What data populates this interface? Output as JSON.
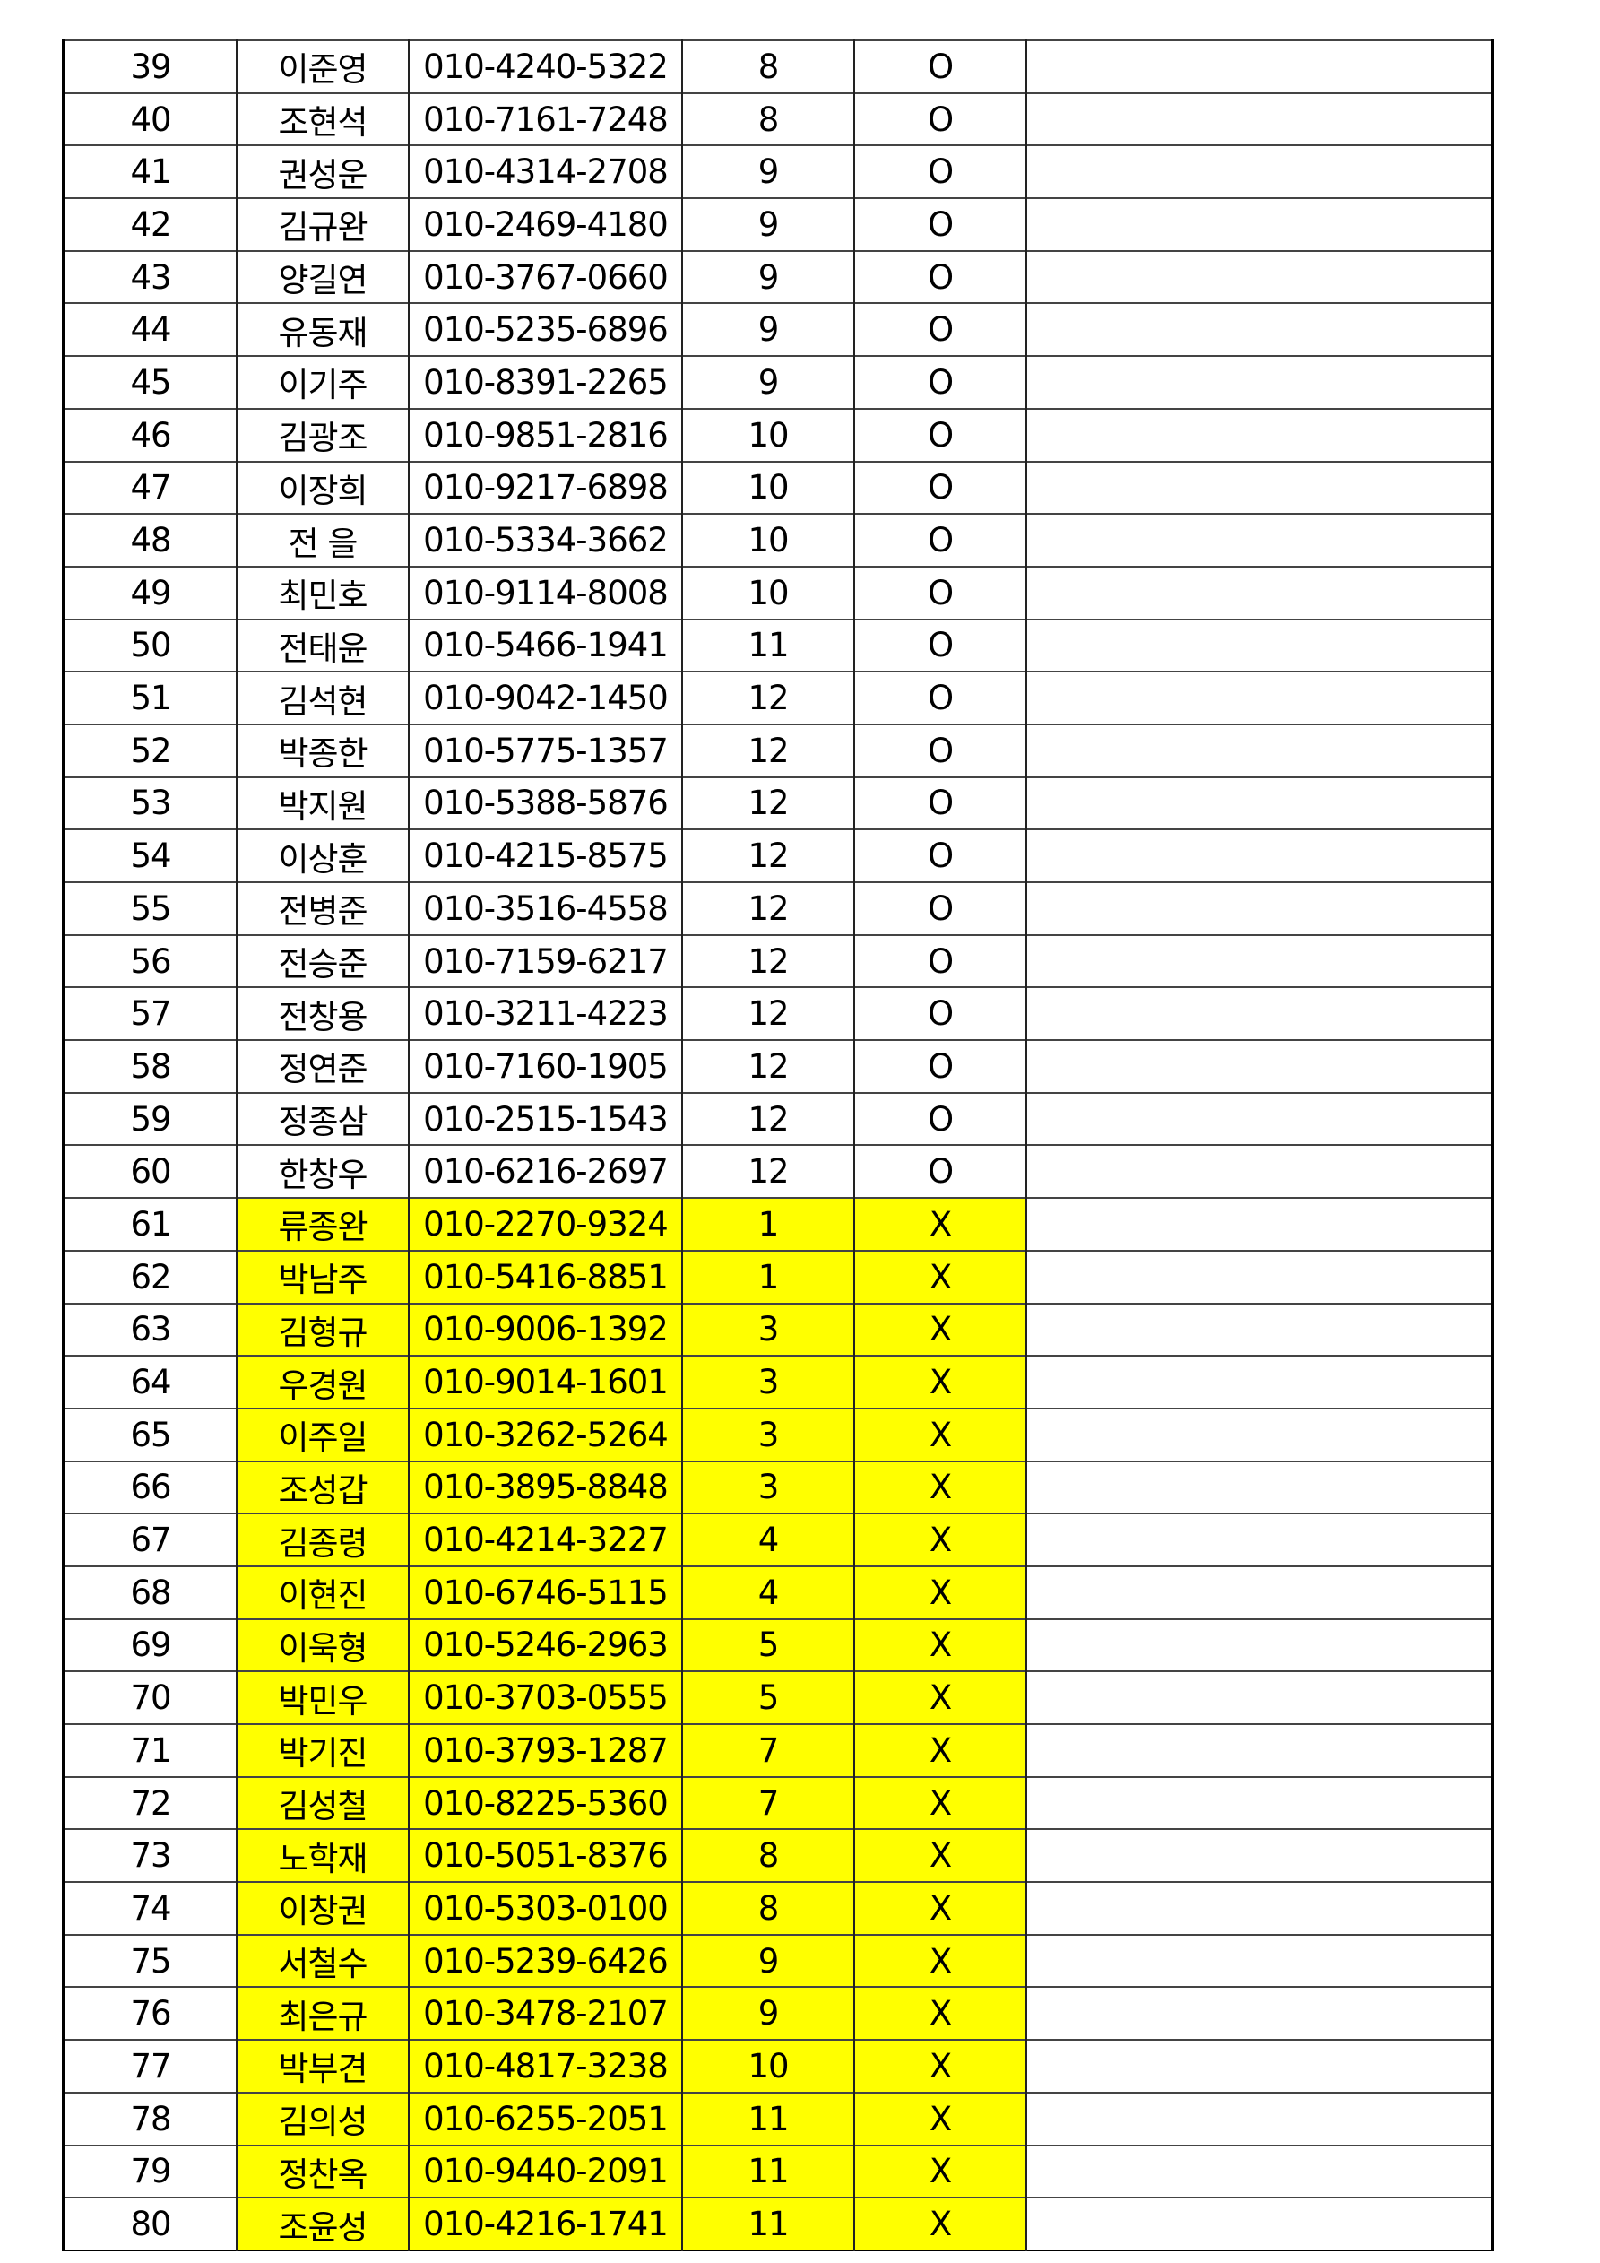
{
  "colors": {
    "highlight": "#ffff00"
  },
  "rows": [
    [
      "39",
      "이준영",
      "010-4240-5322",
      "8",
      "O"
    ],
    [
      "40",
      "조현석",
      "010-7161-7248",
      "8",
      "O"
    ],
    [
      "41",
      "권성운",
      "010-4314-2708",
      "9",
      "O"
    ],
    [
      "42",
      "김규완",
      "010-2469-4180",
      "9",
      "O"
    ],
    [
      "43",
      "양길연",
      "010-3767-0660",
      "9",
      "O"
    ],
    [
      "44",
      "유동재",
      "010-5235-6896",
      "9",
      "O"
    ],
    [
      "45",
      "이기주",
      "010-8391-2265",
      "9",
      "O"
    ],
    [
      "46",
      "김광조",
      "010-9851-2816",
      "10",
      "O"
    ],
    [
      "47",
      "이장희",
      "010-9217-6898",
      "10",
      "O"
    ],
    [
      "48",
      "전 을",
      "010-5334-3662",
      "10",
      "O"
    ],
    [
      "49",
      "최민호",
      "010-9114-8008",
      "10",
      "O"
    ],
    [
      "50",
      "전태윤",
      "010-5466-1941",
      "11",
      "O"
    ],
    [
      "51",
      "김석현",
      "010-9042-1450",
      "12",
      "O"
    ],
    [
      "52",
      "박종한",
      "010-5775-1357",
      "12",
      "O"
    ],
    [
      "53",
      "박지원",
      "010-5388-5876",
      "12",
      "O"
    ],
    [
      "54",
      "이상훈",
      "010-4215-8575",
      "12",
      "O"
    ],
    [
      "55",
      "전병준",
      "010-3516-4558",
      "12",
      "O"
    ],
    [
      "56",
      "전승준",
      "010-7159-6217",
      "12",
      "O"
    ],
    [
      "57",
      "전창용",
      "010-3211-4223",
      "12",
      "O"
    ],
    [
      "58",
      "정연준",
      "010-7160-1905",
      "12",
      "O"
    ],
    [
      "59",
      "정종삼",
      "010-2515-1543",
      "12",
      "O"
    ],
    [
      "60",
      "한창우",
      "010-6216-2697",
      "12",
      "O"
    ],
    [
      "61",
      "류종완",
      "010-2270-9324",
      "1",
      "X"
    ],
    [
      "62",
      "박남주",
      "010-5416-8851",
      "1",
      "X"
    ],
    [
      "63",
      "김형규",
      "010-9006-1392",
      "3",
      "X"
    ],
    [
      "64",
      "우경원",
      "010-9014-1601",
      "3",
      "X"
    ],
    [
      "65",
      "이주일",
      "010-3262-5264",
      "3",
      "X"
    ],
    [
      "66",
      "조성갑",
      "010-3895-8848",
      "3",
      "X"
    ],
    [
      "67",
      "김종령",
      "010-4214-3227",
      "4",
      "X"
    ],
    [
      "68",
      "이현진",
      "010-6746-5115",
      "4",
      "X"
    ],
    [
      "69",
      "이욱형",
      "010-5246-2963",
      "5",
      "X"
    ],
    [
      "70",
      "박민우",
      "010-3703-0555",
      "5",
      "X"
    ],
    [
      "71",
      "박기진",
      "010-3793-1287",
      "7",
      "X"
    ],
    [
      "72",
      "김성철",
      "010-8225-5360",
      "7",
      "X"
    ],
    [
      "73",
      "노학재",
      "010-5051-8376",
      "8",
      "X"
    ],
    [
      "74",
      "이창권",
      "010-5303-0100",
      "8",
      "X"
    ],
    [
      "75",
      "서철수",
      "010-5239-6426",
      "9",
      "X"
    ],
    [
      "76",
      "최은규",
      "010-3478-2107",
      "9",
      "X"
    ],
    [
      "77",
      "박부견",
      "010-4817-3238",
      "10",
      "X"
    ],
    [
      "78",
      "김의성",
      "010-6255-2051",
      "11",
      "X"
    ],
    [
      "79",
      "정찬옥",
      "010-9440-2091",
      "11",
      "X"
    ],
    [
      "80",
      "조윤성",
      "010-4216-1741",
      "11",
      "X"
    ]
  ]
}
